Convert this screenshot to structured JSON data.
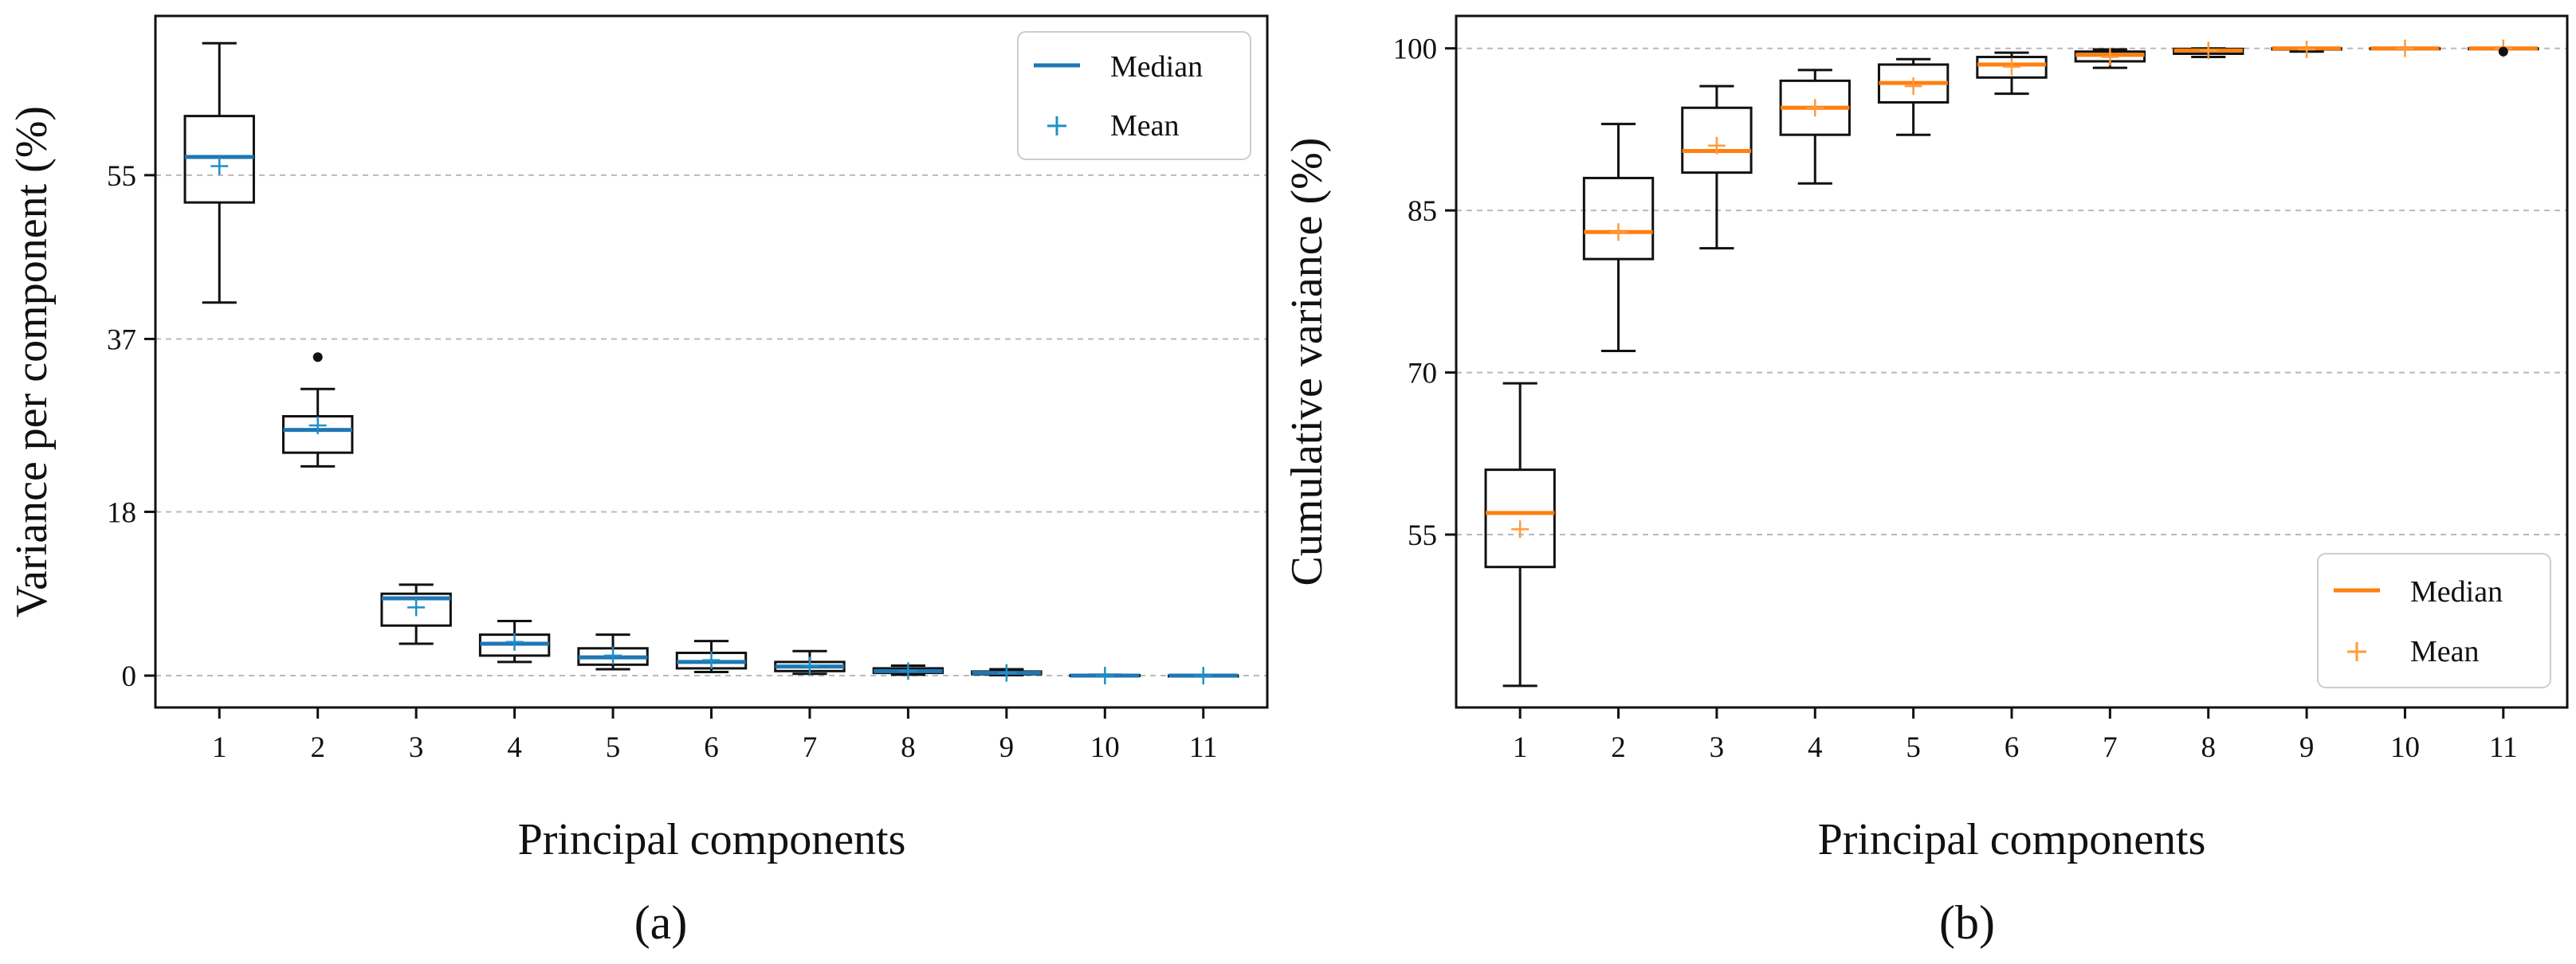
{
  "colors": {
    "median_a": "#1f77b4",
    "mean_a": "#1f8fc8",
    "median_b": "#ff7f0e",
    "mean_b": "#ff9a3c",
    "axis": "#111111",
    "grid": "#b9b9b9"
  },
  "chart_data": [
    {
      "type": "box",
      "panel_label": "(a)",
      "xlabel": "Principal components",
      "ylabel": "Variance per component (%)",
      "ylim": [
        -3.5,
        72.5
      ],
      "yticks": [
        0,
        18,
        37,
        55
      ],
      "ytick_labels": [
        "0",
        "18",
        "37",
        "55"
      ],
      "grid": "y-dashed",
      "legend": {
        "position": "top-right",
        "median_label": "Median",
        "mean_label": "Mean"
      },
      "categories": [
        "1",
        "2",
        "3",
        "4",
        "5",
        "6",
        "7",
        "8",
        "9",
        "10",
        "11"
      ],
      "boxes": [
        {
          "whisker_low": 41.0,
          "q1": 52.0,
          "median": 57.0,
          "q3": 61.5,
          "whisker_high": 69.5,
          "mean": 56.0,
          "fliers": []
        },
        {
          "whisker_low": 23.0,
          "q1": 24.5,
          "median": 27.0,
          "q3": 28.5,
          "whisker_high": 31.5,
          "mean": 27.5,
          "fliers": [
            35.0
          ]
        },
        {
          "whisker_low": 3.5,
          "q1": 5.5,
          "median": 8.5,
          "q3": 9.0,
          "whisker_high": 10.0,
          "mean": 7.5,
          "fliers": []
        },
        {
          "whisker_low": 1.5,
          "q1": 2.2,
          "median": 3.5,
          "q3": 4.5,
          "whisker_high": 6.0,
          "mean": 3.7,
          "fliers": []
        },
        {
          "whisker_low": 0.7,
          "q1": 1.2,
          "median": 2.0,
          "q3": 3.0,
          "whisker_high": 4.5,
          "mean": 2.2,
          "fliers": []
        },
        {
          "whisker_low": 0.4,
          "q1": 0.8,
          "median": 1.5,
          "q3": 2.5,
          "whisker_high": 3.8,
          "mean": 1.7,
          "fliers": []
        },
        {
          "whisker_low": 0.2,
          "q1": 0.5,
          "median": 1.0,
          "q3": 1.5,
          "whisker_high": 2.7,
          "mean": 1.1,
          "fliers": []
        },
        {
          "whisker_low": 0.1,
          "q1": 0.3,
          "median": 0.5,
          "q3": 0.8,
          "whisker_high": 1.1,
          "mean": 0.5,
          "fliers": []
        },
        {
          "whisker_low": 0.05,
          "q1": 0.15,
          "median": 0.3,
          "q3": 0.45,
          "whisker_high": 0.7,
          "mean": 0.3,
          "fliers": []
        },
        {
          "whisker_low": 0.0,
          "q1": 0.0,
          "median": 0.0,
          "q3": 0.05,
          "whisker_high": 0.1,
          "mean": 0.0,
          "fliers": []
        },
        {
          "whisker_low": 0.0,
          "q1": 0.0,
          "median": 0.0,
          "q3": 0.0,
          "whisker_high": 0.0,
          "mean": 0.0,
          "fliers": []
        }
      ]
    },
    {
      "type": "box",
      "panel_label": "(b)",
      "xlabel": "Principal components",
      "ylabel": "Cumulative variance (%)",
      "ylim": [
        39.0,
        103.0
      ],
      "yticks": [
        55,
        70,
        85,
        100
      ],
      "ytick_labels": [
        "55",
        "70",
        "85",
        "100"
      ],
      "grid": "y-dashed",
      "legend": {
        "position": "bottom-right",
        "median_label": "Median",
        "mean_label": "Mean"
      },
      "categories": [
        "1",
        "2",
        "3",
        "4",
        "5",
        "6",
        "7",
        "8",
        "9",
        "10",
        "11"
      ],
      "boxes": [
        {
          "whisker_low": 41.0,
          "q1": 52.0,
          "median": 57.0,
          "q3": 61.0,
          "whisker_high": 69.0,
          "mean": 55.5,
          "fliers": []
        },
        {
          "whisker_low": 72.0,
          "q1": 80.5,
          "median": 83.0,
          "q3": 88.0,
          "whisker_high": 93.0,
          "mean": 83.0,
          "fliers": []
        },
        {
          "whisker_low": 81.5,
          "q1": 88.5,
          "median": 90.5,
          "q3": 94.5,
          "whisker_high": 96.5,
          "mean": 91.0,
          "fliers": []
        },
        {
          "whisker_low": 87.5,
          "q1": 92.0,
          "median": 94.5,
          "q3": 97.0,
          "whisker_high": 98.0,
          "mean": 94.5,
          "fliers": []
        },
        {
          "whisker_low": 92.0,
          "q1": 95.0,
          "median": 96.8,
          "q3": 98.5,
          "whisker_high": 99.0,
          "mean": 96.5,
          "fliers": []
        },
        {
          "whisker_low": 95.8,
          "q1": 97.3,
          "median": 98.5,
          "q3": 99.2,
          "whisker_high": 99.6,
          "mean": 98.3,
          "fliers": []
        },
        {
          "whisker_low": 98.2,
          "q1": 98.8,
          "median": 99.4,
          "q3": 99.7,
          "whisker_high": 99.9,
          "mean": 99.2,
          "fliers": []
        },
        {
          "whisker_low": 99.2,
          "q1": 99.5,
          "median": 99.8,
          "q3": 99.95,
          "whisker_high": 100.0,
          "mean": 99.8,
          "fliers": []
        },
        {
          "whisker_low": 99.7,
          "q1": 99.9,
          "median": 100.0,
          "q3": 100.0,
          "whisker_high": 100.0,
          "mean": 99.9,
          "fliers": []
        },
        {
          "whisker_low": 99.95,
          "q1": 100.0,
          "median": 100.0,
          "q3": 100.0,
          "whisker_high": 100.0,
          "mean": 100.0,
          "fliers": []
        },
        {
          "whisker_low": 100.0,
          "q1": 100.0,
          "median": 100.0,
          "q3": 100.0,
          "whisker_high": 100.0,
          "mean": 100.0,
          "fliers": [
            99.7
          ]
        }
      ]
    }
  ]
}
